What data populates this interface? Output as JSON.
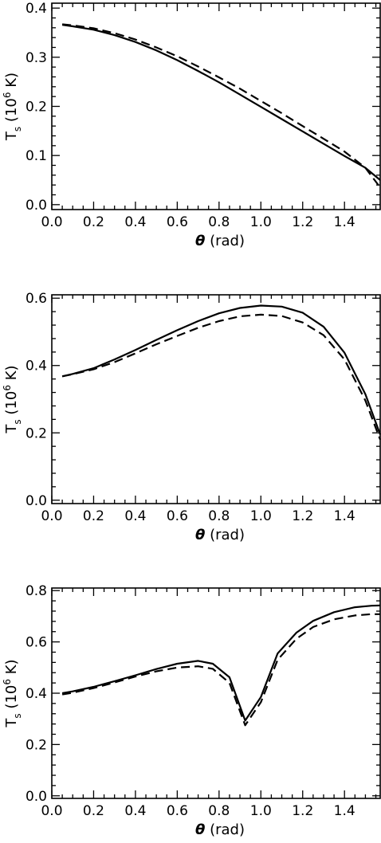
{
  "chart_data": [
    {
      "type": "line",
      "xlabel_symbol": "θ",
      "xlabel_unit": "(rad)",
      "ylabel_main": "T",
      "ylabel_sub": "s",
      "ylabel_pre": "(10",
      "ylabel_exp": "6",
      "ylabel_post": " K)",
      "xlim": [
        0.0,
        1.5708
      ],
      "ylim": [
        -0.01,
        0.41
      ],
      "xticks": [
        0.0,
        0.2,
        0.4,
        0.6,
        0.8,
        1.0,
        1.2,
        1.4
      ],
      "xtick_labels": [
        "0.0",
        "0.2",
        "0.4",
        "0.6",
        "0.8",
        "1.0",
        "1.2",
        "1.4"
      ],
      "yticks": [
        0.0,
        0.1,
        0.2,
        0.3,
        0.4
      ],
      "ytick_labels": [
        "0.0",
        "0.1",
        "0.2",
        "0.3",
        "0.4"
      ],
      "series": [
        {
          "style": "solid",
          "x": [
            0.05,
            0.1,
            0.2,
            0.3,
            0.4,
            0.5,
            0.6,
            0.7,
            0.8,
            0.9,
            1.0,
            1.1,
            1.2,
            1.3,
            1.4,
            1.5,
            1.5708
          ],
          "y": [
            0.366,
            0.363,
            0.356,
            0.345,
            0.331,
            0.314,
            0.294,
            0.272,
            0.249,
            0.224,
            0.199,
            0.174,
            0.149,
            0.124,
            0.099,
            0.075,
            0.05
          ]
        },
        {
          "style": "dashed",
          "x": [
            0.05,
            0.1,
            0.2,
            0.3,
            0.4,
            0.5,
            0.6,
            0.7,
            0.8,
            0.9,
            1.0,
            1.1,
            1.2,
            1.3,
            1.4,
            1.5,
            1.5708
          ],
          "y": [
            0.367,
            0.365,
            0.359,
            0.349,
            0.336,
            0.32,
            0.302,
            0.281,
            0.259,
            0.236,
            0.211,
            0.186,
            0.16,
            0.134,
            0.108,
            0.075,
            0.035
          ]
        }
      ]
    },
    {
      "type": "line",
      "xlabel_symbol": "θ",
      "xlabel_unit": "(rad)",
      "ylabel_main": "T",
      "ylabel_sub": "s",
      "ylabel_pre": "(10",
      "ylabel_exp": "6",
      "ylabel_post": " K)",
      "xlim": [
        0.0,
        1.5708
      ],
      "ylim": [
        -0.01,
        0.61
      ],
      "xticks": [
        0.0,
        0.2,
        0.4,
        0.6,
        0.8,
        1.0,
        1.2,
        1.4
      ],
      "xtick_labels": [
        "0.0",
        "0.2",
        "0.4",
        "0.6",
        "0.8",
        "1.0",
        "1.2",
        "1.4"
      ],
      "yticks": [
        0.0,
        0.2,
        0.4,
        0.6
      ],
      "ytick_labels": [
        "0.0",
        "0.2",
        "0.4",
        "0.6"
      ],
      "series": [
        {
          "style": "solid",
          "x": [
            0.05,
            0.1,
            0.2,
            0.3,
            0.4,
            0.5,
            0.6,
            0.7,
            0.8,
            0.9,
            1.0,
            1.1,
            1.2,
            1.3,
            1.4,
            1.5,
            1.5708
          ],
          "y": [
            0.368,
            0.375,
            0.392,
            0.418,
            0.446,
            0.476,
            0.505,
            0.532,
            0.555,
            0.571,
            0.578,
            0.575,
            0.557,
            0.515,
            0.438,
            0.315,
            0.195
          ]
        },
        {
          "style": "dashed",
          "x": [
            0.05,
            0.1,
            0.2,
            0.3,
            0.4,
            0.5,
            0.6,
            0.7,
            0.8,
            0.9,
            1.0,
            1.1,
            1.2,
            1.3,
            1.4,
            1.5,
            1.5708
          ],
          "y": [
            0.368,
            0.374,
            0.389,
            0.41,
            0.436,
            0.463,
            0.488,
            0.512,
            0.532,
            0.546,
            0.551,
            0.547,
            0.528,
            0.49,
            0.418,
            0.296,
            0.18
          ]
        }
      ]
    },
    {
      "type": "line",
      "xlabel_symbol": "θ",
      "xlabel_unit": "(rad)",
      "ylabel_main": "T",
      "ylabel_sub": "s",
      "ylabel_pre": "(10",
      "ylabel_exp": "6",
      "ylabel_post": " K)",
      "xlim": [
        0.0,
        1.5708
      ],
      "ylim": [
        -0.01,
        0.81
      ],
      "xticks": [
        0.0,
        0.2,
        0.4,
        0.6,
        0.8,
        1.0,
        1.2,
        1.4
      ],
      "xtick_labels": [
        "0.0",
        "0.2",
        "0.4",
        "0.6",
        "0.8",
        "1.0",
        "1.2",
        "1.4"
      ],
      "yticks": [
        0.0,
        0.2,
        0.4,
        0.6,
        0.8
      ],
      "ytick_labels": [
        "0.0",
        "0.2",
        "0.4",
        "0.6",
        "0.8"
      ],
      "series": [
        {
          "style": "solid",
          "x": [
            0.05,
            0.1,
            0.2,
            0.3,
            0.4,
            0.5,
            0.6,
            0.7,
            0.77,
            0.85,
            0.925,
            1.0,
            1.08,
            1.17,
            1.25,
            1.35,
            1.45,
            1.53,
            1.5708
          ],
          "y": [
            0.4,
            0.407,
            0.425,
            0.447,
            0.47,
            0.494,
            0.515,
            0.526,
            0.515,
            0.462,
            0.293,
            0.385,
            0.555,
            0.636,
            0.682,
            0.716,
            0.735,
            0.741,
            0.742
          ]
        },
        {
          "style": "dashed",
          "x": [
            0.05,
            0.1,
            0.2,
            0.3,
            0.4,
            0.5,
            0.6,
            0.7,
            0.77,
            0.85,
            0.925,
            1.0,
            1.08,
            1.17,
            1.25,
            1.35,
            1.45,
            1.53,
            1.5708
          ],
          "y": [
            0.395,
            0.402,
            0.42,
            0.442,
            0.465,
            0.485,
            0.5,
            0.505,
            0.495,
            0.44,
            0.275,
            0.365,
            0.53,
            0.612,
            0.658,
            0.688,
            0.703,
            0.708,
            0.708
          ]
        }
      ]
    }
  ]
}
